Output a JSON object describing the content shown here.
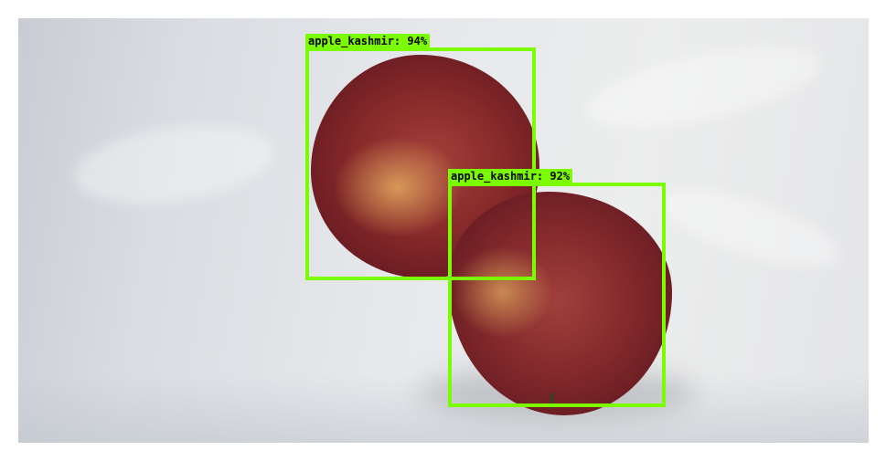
{
  "image": {
    "background_color": "#ffffff",
    "box_color": "#7cfc00",
    "label_text_color": "#000000"
  },
  "detections": [
    {
      "label": "apple_kashmir: 94%",
      "class": "apple_kashmir",
      "score": 0.94
    },
    {
      "label": "apple_kashmir: 92%",
      "class": "apple_kashmir",
      "score": 0.92
    }
  ]
}
